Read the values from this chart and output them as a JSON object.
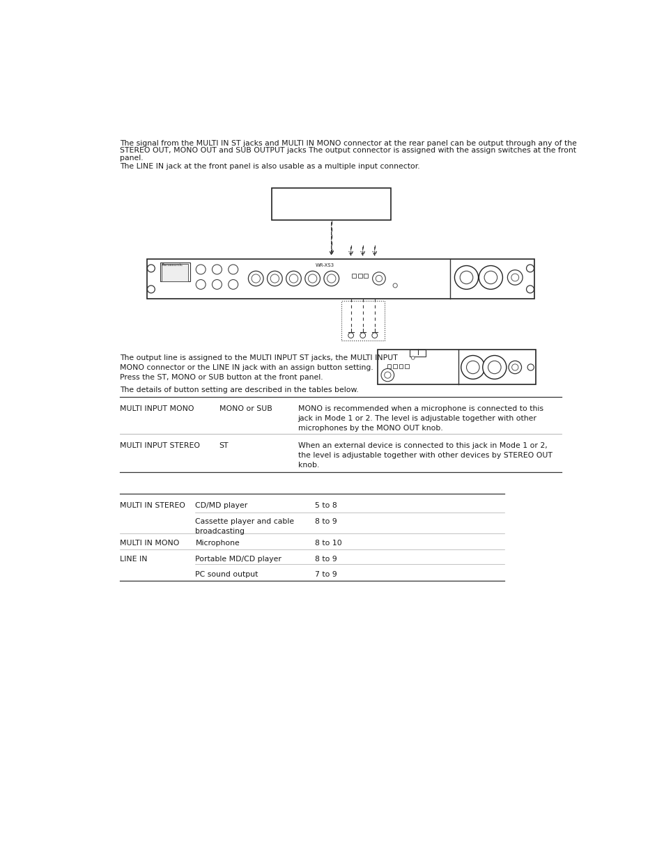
{
  "bg_color": "#ffffff",
  "text_color": "#333333",
  "para1_line1": "The signal from the MULTI IN ST jacks and MULTI IN MONO connector at the rear panel can be output through any of the",
  "para1_line2": "STEREO OUT, MONO OUT and SUB OUTPUT jacks The output connector is assigned with the assign switches at the front",
  "para1_line3": "panel.",
  "para1_line4": "The LINE IN jack at the front panel is also usable as a multiple input connector.",
  "para2": "The output line is assigned to the MULTI INPUT ST jacks, the MULTI INPUT\nMONO connector or the LINE IN jack with an assign button setting.\nPress the ST, MONO or SUB button at the front panel.",
  "para3": "The details of button setting are described in the tables below.",
  "t1r1c1": "MULTI INPUT MONO",
  "t1r1c2": "MONO or SUB",
  "t1r1c3": "MONO is recommended when a microphone is connected to this\njack in Mode 1 or 2. The level is adjustable together with other\nmicrophones by the MONO OUT knob.",
  "t1r2c1": "MULTI INPUT STEREO",
  "t1r2c2": "ST",
  "t1r2c3": "When an external device is connected to this jack in Mode 1 or 2,\nthe level is adjustable together with other devices by STEREO OUT\nknob.",
  "t2r1c1": "MULTI IN STEREO",
  "t2r1c2": "CD/MD player",
  "t2r1c3": "5 to 8",
  "t2r2c2": "Cassette player and cable\nbroadcasting",
  "t2r2c3": "8 to 9",
  "t2r3c1": "MULTI IN MONO",
  "t2r3c2": "Microphone",
  "t2r3c3": "8 to 10",
  "t2r4c1": "LINE IN",
  "t2r4c2": "Portable MD/CD player",
  "t2r4c3": "8 to 9",
  "t2r5c2": "PC sound output",
  "t2r5c3": "7 to 9"
}
